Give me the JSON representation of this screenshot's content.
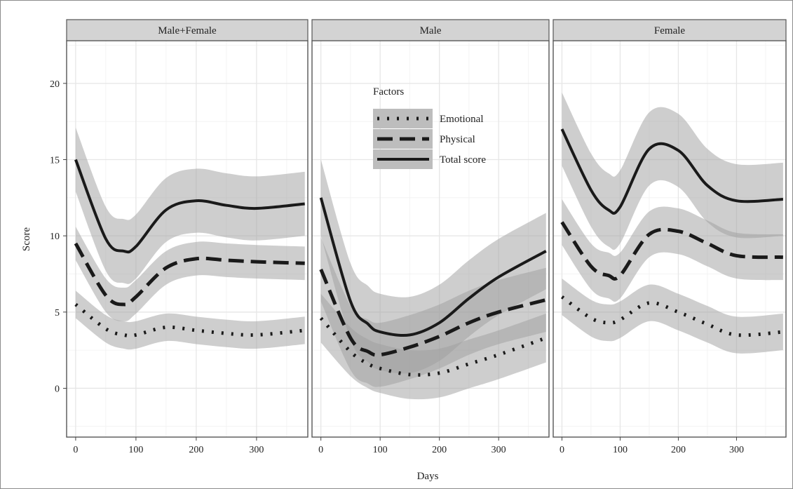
{
  "chart_data": {
    "type": "line",
    "ylabel": "Score",
    "xlabel": "Days",
    "xlim": [
      -15,
      385
    ],
    "ylim": [
      -3.2,
      22.8
    ],
    "x_ticks": [
      0,
      100,
      200,
      300
    ],
    "y_ticks": [
      0,
      5,
      10,
      15,
      20
    ],
    "grid": true,
    "legend": {
      "title": "Factors",
      "placement": "inside-top-middle-panel",
      "entries": [
        "Emotional",
        "Physical",
        "Total score"
      ]
    },
    "x": [
      0,
      50,
      80,
      100,
      150,
      200,
      250,
      300,
      380
    ],
    "panels": [
      {
        "title": "Male+Female",
        "series": [
          {
            "name": "Emotional",
            "values": [
              5.5,
              3.9,
              3.5,
              3.5,
              4.0,
              3.8,
              3.6,
              3.5,
              3.8
            ],
            "band": 0.9
          },
          {
            "name": "Physical",
            "values": [
              9.5,
              6.1,
              5.5,
              6.0,
              7.9,
              8.5,
              8.4,
              8.3,
              8.2
            ],
            "band": 1.1
          },
          {
            "name": "Total score",
            "values": [
              15.0,
              9.8,
              9.0,
              9.3,
              11.7,
              12.3,
              12.0,
              11.8,
              12.1
            ],
            "band": 2.1
          }
        ]
      },
      {
        "title": "Male",
        "series": [
          {
            "name": "Emotional",
            "values": [
              4.6,
              2.4,
              1.6,
              1.3,
              0.9,
              1.0,
              1.6,
              2.2,
              3.3
            ],
            "band": 1.6
          },
          {
            "name": "Physical",
            "values": [
              7.8,
              3.3,
              2.4,
              2.2,
              2.7,
              3.4,
              4.3,
              5.0,
              5.8
            ],
            "band": 2.1
          },
          {
            "name": "Total score",
            "values": [
              12.5,
              5.7,
              4.2,
              3.7,
              3.5,
              4.3,
              5.9,
              7.3,
              9.0
            ],
            "band": 2.5
          }
        ]
      },
      {
        "title": "Female",
        "series": [
          {
            "name": "Emotional",
            "values": [
              6.0,
              4.6,
              4.3,
              4.5,
              5.6,
              5.0,
              4.2,
              3.5,
              3.7
            ],
            "band": 1.2
          },
          {
            "name": "Physical",
            "values": [
              10.9,
              8.0,
              7.4,
              7.4,
              10.1,
              10.3,
              9.5,
              8.7,
              8.6
            ],
            "band": 1.5
          },
          {
            "name": "Total score",
            "values": [
              17.0,
              13.0,
              11.7,
              11.9,
              15.7,
              15.6,
              13.3,
              12.3,
              12.4
            ],
            "band": 2.4
          }
        ]
      }
    ]
  }
}
